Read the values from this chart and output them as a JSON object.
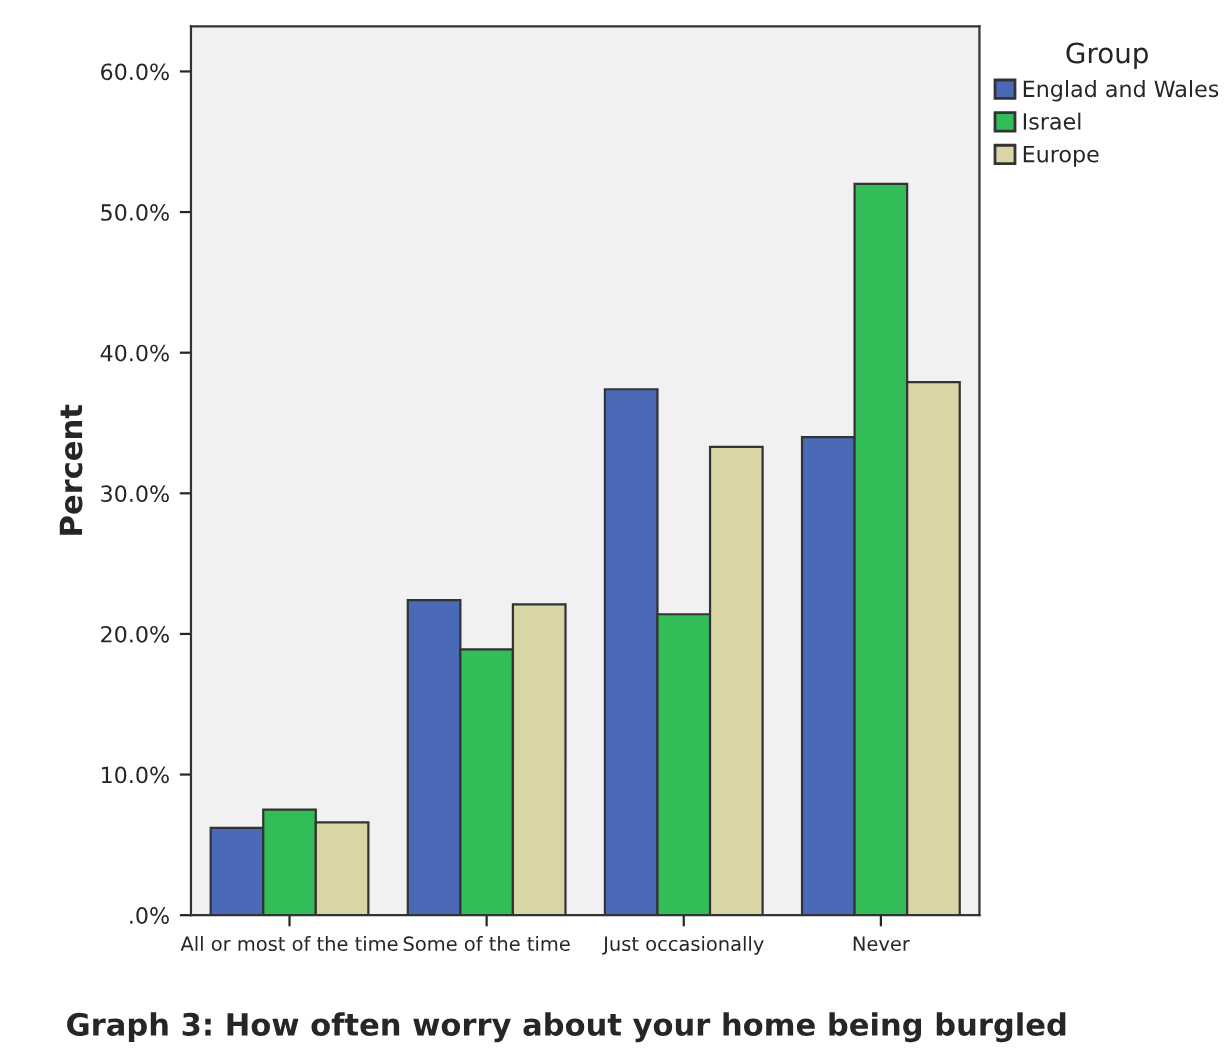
{
  "chart_data": {
    "type": "bar",
    "title": "Graph 3: How often worry about your home being burgled",
    "ylabel": "Percent",
    "legend_title": "Group",
    "categories": [
      "All or most of the time",
      "Some of the time",
      "Just occasionally",
      "Never"
    ],
    "series": [
      {
        "name": "Englad and Wales",
        "color": "#4a6ab8",
        "values": [
          6.2,
          22.4,
          37.4,
          34.0
        ]
      },
      {
        "name": "Israel",
        "color": "#33bd59",
        "values": [
          7.5,
          18.9,
          21.4,
          52.0
        ]
      },
      {
        "name": "Europe",
        "color": "#dad5a5",
        "values": [
          6.6,
          22.1,
          33.3,
          37.9
        ]
      }
    ],
    "ylim": [
      0,
      63.2
    ],
    "yticks": [
      {
        "value": 0,
        "label": ".0%"
      },
      {
        "value": 10,
        "label": "10.0%"
      },
      {
        "value": 20,
        "label": "20.0%"
      },
      {
        "value": 30,
        "label": "30.0%"
      },
      {
        "value": 40,
        "label": "40.0%"
      },
      {
        "value": 50,
        "label": "50.0%"
      },
      {
        "value": 60,
        "label": "60.0%"
      }
    ],
    "grid": false,
    "legend": "top right"
  }
}
